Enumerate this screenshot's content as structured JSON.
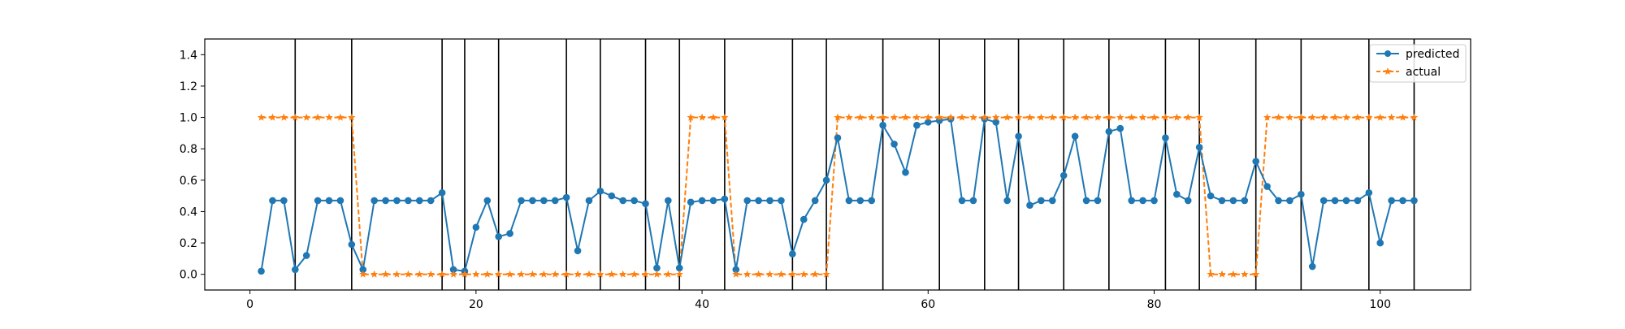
{
  "chart_data": {
    "type": "line",
    "title": "",
    "xlabel": "",
    "ylabel": "",
    "xlim": [
      -4,
      108
    ],
    "ylim": [
      -0.1,
      1.5
    ],
    "x_ticks": [
      0,
      20,
      40,
      60,
      80,
      100
    ],
    "y_ticks": [
      0.0,
      0.2,
      0.4,
      0.6,
      0.8,
      1.0,
      1.2,
      1.4
    ],
    "y_tick_labels": [
      "0.0",
      "0.2",
      "0.4",
      "0.6",
      "0.8",
      "1.0",
      "1.2",
      "1.4"
    ],
    "vertical_lines": [
      4,
      9,
      17,
      19,
      22,
      28,
      31,
      35,
      38,
      42,
      48,
      51,
      56,
      61,
      65,
      68,
      72,
      76,
      81,
      84,
      89,
      93,
      99,
      103
    ],
    "legend": {
      "location": "upper right",
      "entries": [
        "predicted",
        "actual"
      ]
    },
    "series": [
      {
        "name": "predicted",
        "color": "#1f77b4",
        "marker": "circle",
        "line_style": "solid",
        "x": [
          1,
          2,
          3,
          4,
          5,
          6,
          7,
          8,
          9,
          10,
          11,
          12,
          13,
          14,
          15,
          16,
          17,
          18,
          19,
          20,
          21,
          22,
          23,
          24,
          25,
          26,
          27,
          28,
          29,
          30,
          31,
          32,
          33,
          34,
          35,
          36,
          37,
          38,
          39,
          40,
          41,
          42,
          43,
          44,
          45,
          46,
          47,
          48,
          49,
          50,
          51,
          52,
          53,
          54,
          55,
          56,
          57,
          58,
          59,
          60,
          61,
          62,
          63,
          64,
          65,
          66,
          67,
          68,
          69,
          70,
          71,
          72,
          73,
          74,
          75,
          76,
          77,
          78,
          79,
          80,
          81,
          82,
          83,
          84,
          85,
          86,
          87,
          88,
          89,
          90,
          91,
          92,
          93,
          94,
          95,
          96,
          97,
          98,
          99,
          100,
          101,
          102,
          103
        ],
        "values": [
          0.02,
          0.47,
          0.47,
          0.03,
          0.12,
          0.47,
          0.47,
          0.47,
          0.19,
          0.03,
          0.47,
          0.47,
          0.47,
          0.47,
          0.47,
          0.47,
          0.52,
          0.03,
          0.02,
          0.3,
          0.47,
          0.24,
          0.26,
          0.47,
          0.47,
          0.47,
          0.47,
          0.49,
          0.15,
          0.47,
          0.53,
          0.5,
          0.47,
          0.47,
          0.45,
          0.04,
          0.47,
          0.04,
          0.46,
          0.47,
          0.47,
          0.48,
          0.03,
          0.47,
          0.47,
          0.47,
          0.47,
          0.13,
          0.35,
          0.47,
          0.6,
          0.87,
          0.47,
          0.47,
          0.47,
          0.95,
          0.83,
          0.65,
          0.95,
          0.97,
          0.98,
          0.99,
          0.47,
          0.47,
          0.99,
          0.97,
          0.47,
          0.88,
          0.44,
          0.47,
          0.47,
          0.63,
          0.88,
          0.47,
          0.47,
          0.91,
          0.93,
          0.47,
          0.47,
          0.47,
          0.87,
          0.51,
          0.47,
          0.81,
          0.5,
          0.47,
          0.47,
          0.47,
          0.72,
          0.56,
          0.47,
          0.47,
          0.51,
          0.05,
          0.47,
          0.47,
          0.47,
          0.47,
          0.52,
          0.2,
          0.47,
          0.47,
          0.47
        ]
      },
      {
        "name": "actual",
        "color": "#ff7f0e",
        "marker": "star",
        "line_style": "dashed",
        "x": [
          1,
          2,
          3,
          4,
          5,
          6,
          7,
          8,
          9,
          10,
          11,
          12,
          13,
          14,
          15,
          16,
          17,
          18,
          19,
          20,
          21,
          22,
          23,
          24,
          25,
          26,
          27,
          28,
          29,
          30,
          31,
          32,
          33,
          34,
          35,
          36,
          37,
          38,
          39,
          40,
          41,
          42,
          43,
          44,
          45,
          46,
          47,
          48,
          49,
          50,
          51,
          52,
          53,
          54,
          55,
          56,
          57,
          58,
          59,
          60,
          61,
          62,
          63,
          64,
          65,
          66,
          67,
          68,
          69,
          70,
          71,
          72,
          73,
          74,
          75,
          76,
          77,
          78,
          79,
          80,
          81,
          82,
          83,
          84,
          85,
          86,
          87,
          88,
          89,
          90,
          91,
          92,
          93,
          94,
          95,
          96,
          97,
          98,
          99,
          100,
          101,
          102,
          103
        ],
        "values": [
          1,
          1,
          1,
          1,
          1,
          1,
          1,
          1,
          1,
          0,
          0,
          0,
          0,
          0,
          0,
          0,
          0,
          0,
          0,
          0,
          0,
          0,
          0,
          0,
          0,
          0,
          0,
          0,
          0,
          0,
          0,
          0,
          0,
          0,
          0,
          0,
          0,
          0,
          1,
          1,
          1,
          1,
          0,
          0,
          0,
          0,
          0,
          0,
          0,
          0,
          0,
          1,
          1,
          1,
          1,
          1,
          1,
          1,
          1,
          1,
          1,
          1,
          1,
          1,
          1,
          1,
          1,
          1,
          1,
          1,
          1,
          1,
          1,
          1,
          1,
          1,
          1,
          1,
          1,
          1,
          1,
          1,
          1,
          1,
          0,
          0,
          0,
          0,
          0,
          1,
          1,
          1,
          1,
          1,
          1,
          1,
          1,
          1,
          1,
          1,
          1,
          1,
          1
        ]
      }
    ]
  }
}
